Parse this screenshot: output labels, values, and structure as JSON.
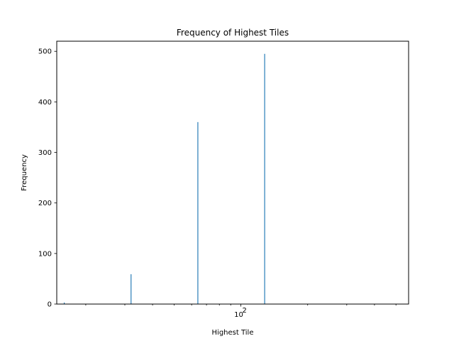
{
  "chart_data": {
    "type": "bar",
    "title": "Frequency of Highest Tiles",
    "xlabel": "Highest Tile",
    "ylabel": "Frequency",
    "x_scale": "log",
    "xlim": [
      14.8,
      570
    ],
    "ylim": [
      0,
      520
    ],
    "x_major_ticks": [
      {
        "value": 100,
        "base": "10",
        "exp": "2"
      }
    ],
    "x_minor_ticks": [
      20,
      30,
      40,
      50,
      60,
      70,
      80,
      90,
      200,
      300,
      400,
      500
    ],
    "y_ticks": [
      0,
      100,
      200,
      300,
      400,
      500
    ],
    "grid": false,
    "color": "#1f77b4",
    "bars": [
      {
        "tile": 16,
        "value": 3
      },
      {
        "tile": 32,
        "value": 59
      },
      {
        "tile": 64,
        "value": 360
      },
      {
        "tile": 128,
        "value": 495
      }
    ]
  }
}
